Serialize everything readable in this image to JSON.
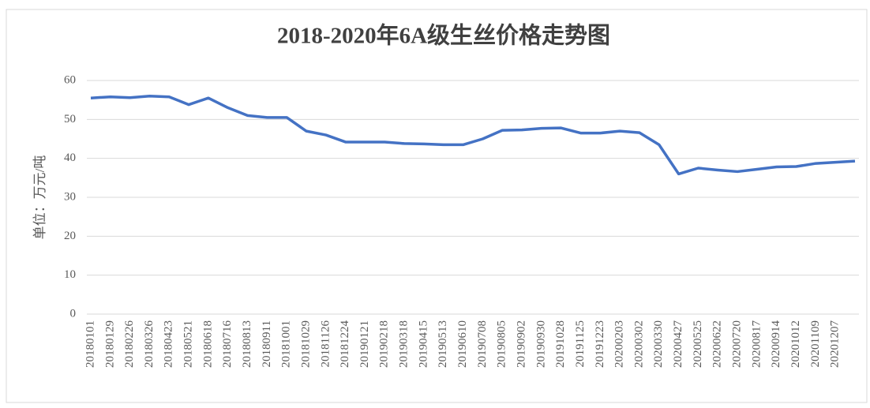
{
  "chart_data": {
    "type": "line",
    "title": "2018-2020年6A级生丝价格走势图",
    "y_label": "单位：万元/吨",
    "categories": [
      "20180101",
      "20180129",
      "20180226",
      "20180326",
      "20180423",
      "20180521",
      "20180618",
      "20180716",
      "20180813",
      "20180911",
      "20181001",
      "20181029",
      "20181126",
      "20181224",
      "20190121",
      "20190218",
      "20190318",
      "20190415",
      "20190513",
      "20190610",
      "20190708",
      "20190805",
      "20190902",
      "20190930",
      "20191028",
      "20191125",
      "20191223",
      "20200203",
      "20200302",
      "20200330",
      "20200427",
      "20200525",
      "20200622",
      "20200720",
      "20200817",
      "20200914",
      "20201012",
      "20201109",
      "20201207",
      null
    ],
    "series": [
      {
        "name": "6A级生丝价格",
        "color": "#4472c4",
        "values": [
          55.5,
          55.8,
          55.6,
          56,
          55.8,
          53.8,
          55.5,
          53,
          51,
          50.5,
          50.5,
          47,
          46,
          44.2,
          44.2,
          44.2,
          43.8,
          43.7,
          43.5,
          43.5,
          45,
          47.2,
          47.3,
          47.7,
          47.8,
          46.5,
          46.5,
          47,
          46.6,
          43.5,
          36,
          37.5,
          37,
          36.6,
          37.2,
          37.8,
          37.9,
          38.7,
          39,
          39.3
        ]
      }
    ],
    "ylim": [
      0,
      60
    ],
    "yticks": [
      0,
      10,
      20,
      30,
      40,
      50,
      60
    ],
    "grid": true
  }
}
